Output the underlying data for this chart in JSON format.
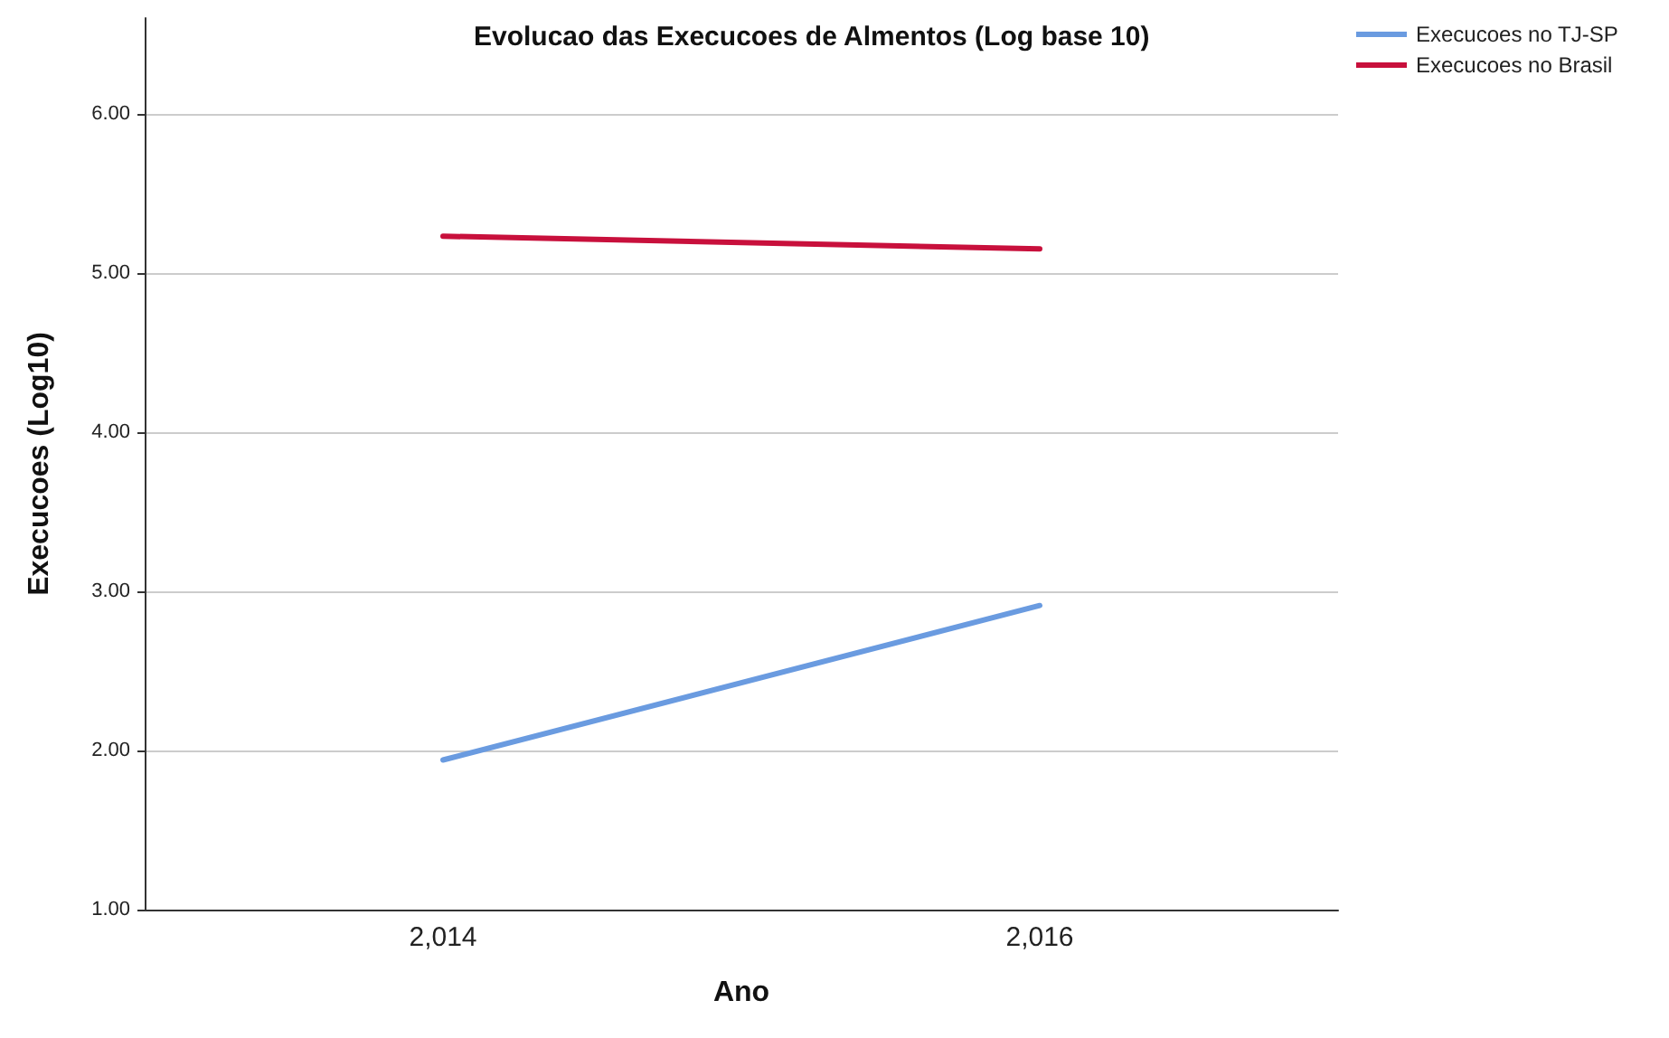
{
  "chart_data": {
    "type": "line",
    "title": "Evolucao das Execucoes de Almentos (Log base 10)",
    "xlabel": "Ano",
    "ylabel": "Execucoes (Log10)",
    "categories": [
      "2,014",
      "2,016"
    ],
    "series": [
      {
        "name": "Execucoes no TJ-SP",
        "color": "#6a9be0",
        "values": [
          1.94,
          2.91
        ]
      },
      {
        "name": "Execucoes no Brasil",
        "color": "#c8103c",
        "values": [
          5.23,
          5.15
        ]
      }
    ],
    "ylim": [
      1,
      6.6
    ],
    "yticks": [
      {
        "value": 1,
        "label": "1.00"
      },
      {
        "value": 2,
        "label": "2.00"
      },
      {
        "value": 3,
        "label": "3.00"
      },
      {
        "value": 4,
        "label": "4.00"
      },
      {
        "value": 5,
        "label": "5.00"
      },
      {
        "value": 6,
        "label": "6.00"
      }
    ],
    "grid": "y",
    "legend": "top right",
    "marker": "none",
    "line_style": "solid"
  }
}
